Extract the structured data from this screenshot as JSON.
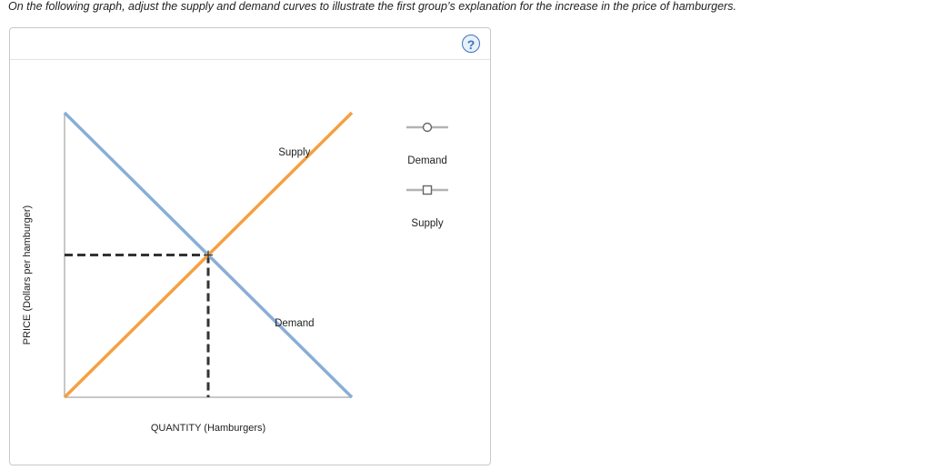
{
  "instruction": "On the following graph, adjust the supply and demand curves to illustrate the first group’s explanation for the increase in the price of hamburgers.",
  "help_label": "?",
  "chart_data": {
    "type": "line",
    "title": "",
    "xlabel": "QUANTITY (Hamburgers)",
    "ylabel": "PRICE (Dollars per hamburger)",
    "xlim": [
      0,
      100
    ],
    "ylim": [
      0,
      100
    ],
    "grid": false,
    "legend_position": "right",
    "series": [
      {
        "name": "Demand",
        "color": "#89aed6",
        "marker": "circle",
        "x": [
          0,
          100
        ],
        "y": [
          100,
          0
        ],
        "label_point": [
          80,
          25
        ]
      },
      {
        "name": "Supply",
        "color": "#f5a041",
        "marker": "square",
        "x": [
          0,
          100
        ],
        "y": [
          0,
          100
        ],
        "label_point": [
          80,
          85
        ]
      }
    ],
    "equilibrium": {
      "x": 50,
      "y": 50
    }
  }
}
